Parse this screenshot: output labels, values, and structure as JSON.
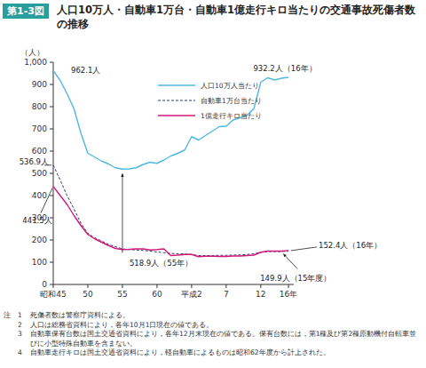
{
  "chart_data": {
    "type": "line",
    "figure_label": "第1-3図",
    "title": "人口10万人・自動車1万台・自動車1億走行キロ当たりの交通事故死傷者数の推移",
    "y_label": "（人）",
    "categories": [
      "昭和45",
      null,
      null,
      null,
      null,
      "50",
      null,
      null,
      null,
      null,
      "55",
      null,
      null,
      null,
      null,
      "60",
      null,
      null,
      null,
      null,
      "平成2",
      null,
      null,
      null,
      null,
      "7",
      null,
      null,
      null,
      null,
      "12",
      null,
      null,
      null,
      "16年"
    ],
    "series": [
      {
        "name": "人口10万人当たり",
        "color": "#4fb8e0",
        "line_style": "solid",
        "values": [
          962.1,
          918,
          858,
          790,
          680,
          590,
          573,
          555,
          542,
          525,
          518.9,
          520,
          525,
          540,
          550,
          545,
          560,
          578,
          590,
          605,
          665,
          650,
          670,
          690,
          710,
          712,
          740,
          750,
          762,
          790,
          910,
          930,
          920,
          928,
          932.2
        ]
      },
      {
        "name": "自動車1万台当たり",
        "color": "#2a3a6a",
        "line_style": "dashed",
        "values": [
          536.9,
          470,
          400,
          340,
          275,
          230,
          210,
          195,
          180,
          170,
          160,
          157,
          155,
          153,
          150,
          146,
          143,
          140,
          138,
          137,
          135,
          130,
          130,
          130,
          131,
          131,
          132,
          133,
          135,
          138,
          145,
          148,
          148,
          148,
          150
        ]
      },
      {
        "name": "1億走行キロ当たり",
        "color": "#d4187a",
        "line_style": "solid",
        "values": [
          441.5,
          400,
          360,
          310,
          265,
          225,
          205,
          190,
          175,
          162,
          157,
          158,
          160,
          160,
          155,
          157,
          160,
          130,
          132,
          135,
          135,
          125,
          127,
          127,
          126,
          126,
          128,
          128,
          130,
          132,
          145,
          150,
          150,
          149.9,
          152.4
        ]
      }
    ],
    "ylim": [
      0,
      1000
    ],
    "yticks": [
      0,
      100,
      200,
      300,
      400,
      500,
      600,
      700,
      800,
      900,
      {
        "value": 1000,
        "label": "1,000"
      }
    ],
    "grid": false,
    "legend": "top",
    "annotations": [
      {
        "text": "962.1人",
        "series": 0,
        "index": 0
      },
      {
        "text": "518.9人（55年）",
        "series": 0,
        "index": 10
      },
      {
        "text": "932.2人（16年）",
        "series": 0,
        "index": 34
      },
      {
        "text": "536.9人",
        "series": 1,
        "index": 0
      },
      {
        "text": "441.5人",
        "series": 2,
        "index": 0
      },
      {
        "text": "152.4人（16年）",
        "series": 2,
        "index": 34
      },
      {
        "text": "149.9人（15年度）",
        "series": 2,
        "index": 33
      }
    ],
    "notes_label": "注",
    "notes": [
      {
        "number": 1,
        "text": "死傷者数は警察庁資料による。"
      },
      {
        "number": 2,
        "text": "人口は総務省資料により，各年10月1日現在の値である。"
      },
      {
        "number": 3,
        "text": "自動車保有台数は国土交通省資料により，各年12月末現在の値である。保有台数には，第1種及び第2種原動機付自転車並びに小型特殊自動車を含まない。"
      },
      {
        "number": 4,
        "text": "自動車走行キロは国土交通省資料により，軽自動車によるものは昭和62年度から計上された。"
      }
    ]
  }
}
